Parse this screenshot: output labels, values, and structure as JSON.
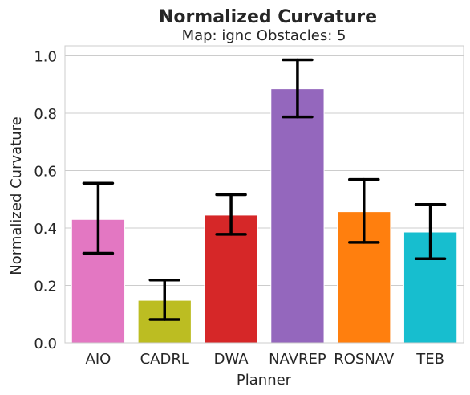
{
  "chart_data": {
    "type": "bar",
    "title": "Normalized Curvature",
    "subtitle": "Map: ignc Obstacles: 5",
    "xlabel": "Planner",
    "ylabel": "Normalized Curvature",
    "categories": [
      "AIO",
      "CADRL",
      "DWA",
      "NAVREP",
      "ROSNAV",
      "TEB"
    ],
    "values": [
      0.43,
      0.148,
      0.445,
      0.885,
      0.457,
      0.386
    ],
    "error_low": [
      0.312,
      0.081,
      0.378,
      0.787,
      0.35,
      0.293
    ],
    "error_high": [
      0.556,
      0.219,
      0.516,
      0.986,
      0.569,
      0.482
    ],
    "colors": [
      "#e377c2",
      "#bcbd22",
      "#d62728",
      "#9467bd",
      "#ff7f0e",
      "#17becf"
    ],
    "ylim": [
      0,
      1.035
    ],
    "yticks": [
      0.0,
      0.2,
      0.4,
      0.6,
      0.8,
      1.0
    ],
    "ytick_labels": [
      "0.0",
      "0.2",
      "0.4",
      "0.6",
      "0.8",
      "1.0"
    ],
    "grid": true,
    "legend": "none"
  }
}
